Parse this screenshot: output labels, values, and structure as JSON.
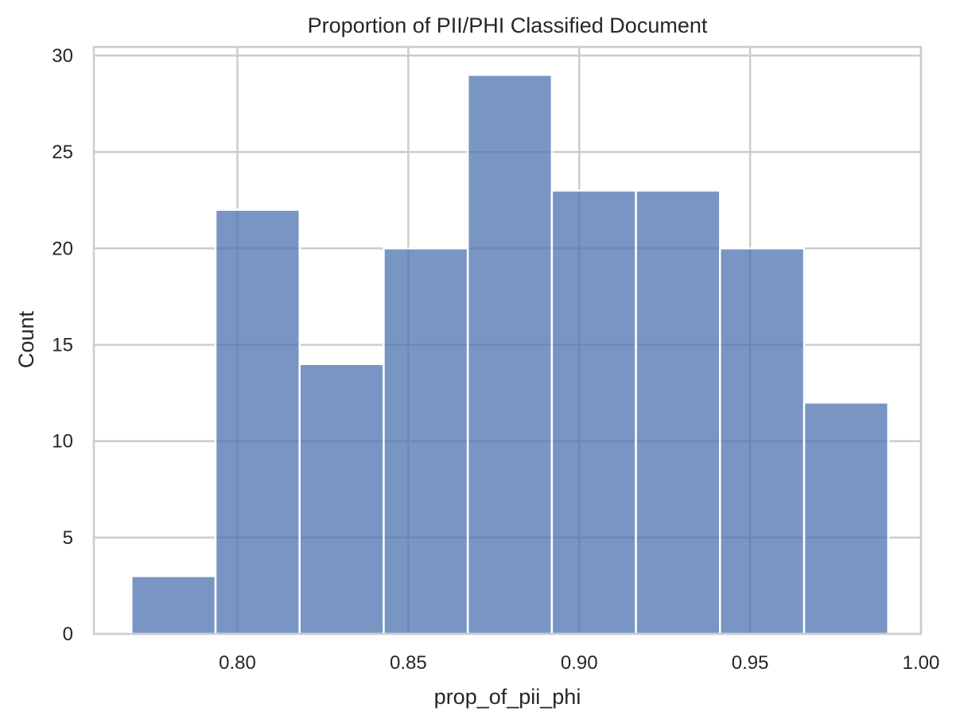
{
  "chart_data": {
    "type": "bar",
    "subtype": "histogram",
    "title": "Proportion of PII/PHI Classified Document",
    "xlabel": "prop_of_pii_phi",
    "ylabel": "Count",
    "bin_edges": [
      0.769,
      0.7936,
      0.8182,
      0.8428,
      0.8674,
      0.892,
      0.9166,
      0.9412,
      0.9658,
      0.9904
    ],
    "values": [
      3,
      22,
      14,
      20,
      29,
      23,
      23,
      20,
      12
    ],
    "xlim": [
      0.758,
      1.0
    ],
    "ylim": [
      0,
      30.45
    ],
    "xticks": [
      0.8,
      0.85,
      0.9,
      0.95,
      1.0
    ],
    "xtick_labels": [
      "0.80",
      "0.85",
      "0.90",
      "0.95",
      "1.00"
    ],
    "yticks": [
      0,
      5,
      10,
      15,
      20,
      25,
      30
    ],
    "ytick_labels": [
      "0",
      "5",
      "10",
      "15",
      "20",
      "25",
      "30"
    ],
    "grid": true,
    "legend": "none",
    "colors": {
      "bar": "#4c72b0",
      "grid": "#cccccc",
      "text": "#262626"
    }
  }
}
